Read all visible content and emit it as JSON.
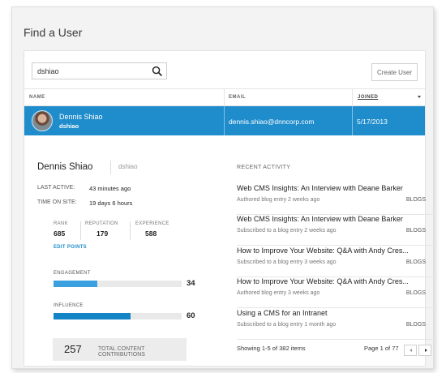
{
  "page": {
    "title": "Find a User"
  },
  "search": {
    "value": "dshiao",
    "icon": "search-icon"
  },
  "toolbar": {
    "create_label": "Create User"
  },
  "table": {
    "headers": {
      "name": "NAME",
      "email": "EMAIL",
      "joined": "JOINED"
    },
    "selected_row": {
      "display_name": "Dennis Shiao",
      "username": "dshiao",
      "email": "dennis.shiao@dnncorp.com",
      "joined": "5/17/2013"
    }
  },
  "detail": {
    "display_name": "Dennis Shiao",
    "username": "dshiao",
    "last_active_label": "LAST ACTIVE:",
    "last_active_value": "43 minutes ago",
    "time_on_site_label": "TIME ON SITE:",
    "time_on_site_value": "19 days 6 hours",
    "metrics": [
      {
        "label": "RANK",
        "value": "685"
      },
      {
        "label": "REPUTATION",
        "value": "179"
      },
      {
        "label": "EXPERIENCE",
        "value": "588"
      }
    ],
    "edit_points_label": "EDIT POINTS",
    "engagement": {
      "label": "ENGAGEMENT",
      "value": "34",
      "fill": 0.34,
      "color": "#3aa0e0"
    },
    "influence": {
      "label": "INFLUENCE",
      "value": "60",
      "fill": 0.6,
      "color": "#1384c5"
    },
    "contributions": {
      "value": "257",
      "label": "TOTAL CONTENT CONTRIBUTIONS"
    }
  },
  "activity": {
    "title": "RECENT ACTIVITY",
    "items": [
      {
        "title": "Web CMS Insights: An Interview with Deane Barker",
        "meta": "Authored blog entry 2 weeks ago",
        "type": "BLOGS"
      },
      {
        "title": "Web CMS Insights: An Interview with Deane Barker",
        "meta": "Subscribed to a blog entry 2 weeks ago",
        "type": "BLOGS"
      },
      {
        "title": "How to Improve Your Website: Q&A with Andy Cres...",
        "meta": "Subscribed to a blog entry 3 weeks ago",
        "type": "BLOGS"
      },
      {
        "title": "How to Improve Your Website: Q&A with Andy Cres...",
        "meta": "Authored blog entry 3 weeks ago",
        "type": "BLOGS"
      },
      {
        "title": "Using a CMS for an Intranet",
        "meta": "Subscribed to a blog entry 1 month ago",
        "type": "BLOGS"
      }
    ],
    "showing": "Showing 1-5 of 382 items",
    "page_label": "Page 1 of 77"
  },
  "colors": {
    "accent": "#1f8ccc"
  }
}
